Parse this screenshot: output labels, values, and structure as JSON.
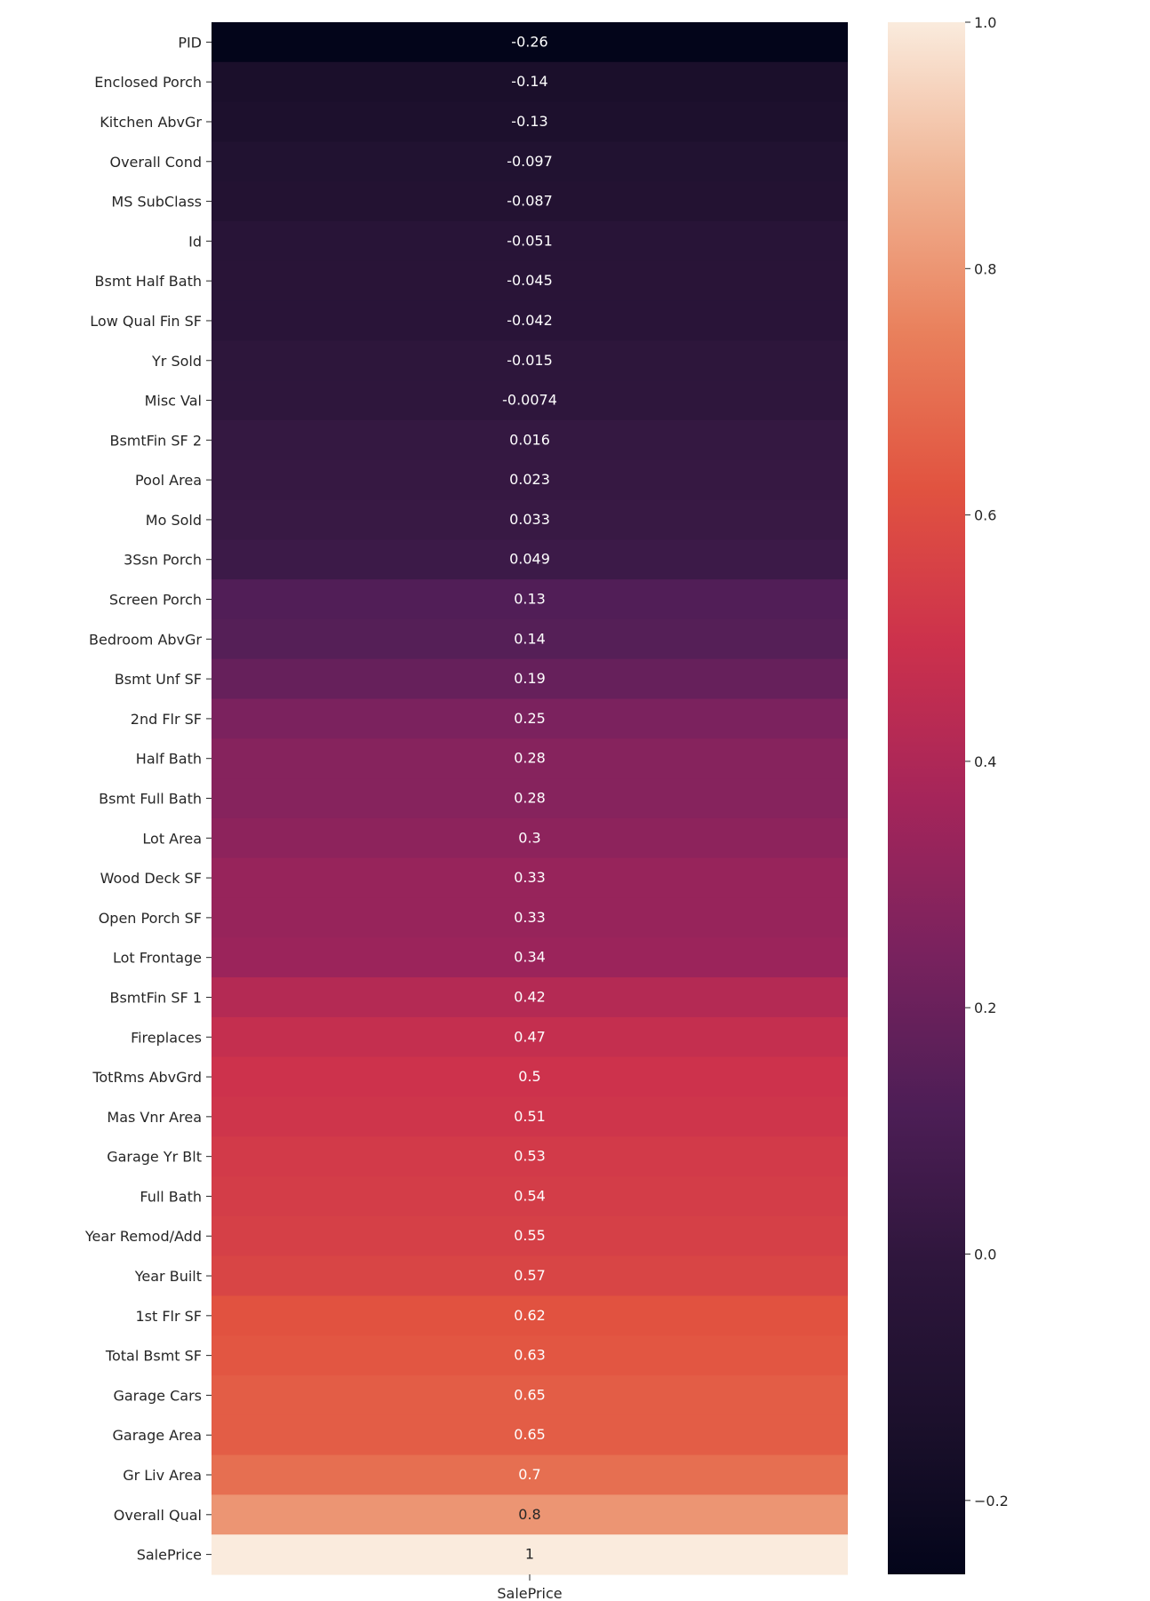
{
  "chart_data": {
    "type": "heatmap",
    "column": "SalePrice",
    "rows": [
      {
        "label": "PID",
        "value": -0.26,
        "text": "-0.26"
      },
      {
        "label": "Enclosed Porch",
        "value": -0.14,
        "text": "-0.14"
      },
      {
        "label": "Kitchen AbvGr",
        "value": -0.13,
        "text": "-0.13"
      },
      {
        "label": "Overall Cond",
        "value": -0.097,
        "text": "-0.097"
      },
      {
        "label": "MS SubClass",
        "value": -0.087,
        "text": "-0.087"
      },
      {
        "label": "Id",
        "value": -0.051,
        "text": "-0.051"
      },
      {
        "label": "Bsmt Half Bath",
        "value": -0.045,
        "text": "-0.045"
      },
      {
        "label": "Low Qual Fin SF",
        "value": -0.042,
        "text": "-0.042"
      },
      {
        "label": "Yr Sold",
        "value": -0.015,
        "text": "-0.015"
      },
      {
        "label": "Misc Val",
        "value": -0.0074,
        "text": "-0.0074"
      },
      {
        "label": "BsmtFin SF 2",
        "value": 0.016,
        "text": "0.016"
      },
      {
        "label": "Pool Area",
        "value": 0.023,
        "text": "0.023"
      },
      {
        "label": "Mo Sold",
        "value": 0.033,
        "text": "0.033"
      },
      {
        "label": "3Ssn Porch",
        "value": 0.049,
        "text": "0.049"
      },
      {
        "label": "Screen Porch",
        "value": 0.13,
        "text": "0.13"
      },
      {
        "label": "Bedroom AbvGr",
        "value": 0.14,
        "text": "0.14"
      },
      {
        "label": "Bsmt Unf SF",
        "value": 0.19,
        "text": "0.19"
      },
      {
        "label": "2nd Flr SF",
        "value": 0.25,
        "text": "0.25"
      },
      {
        "label": "Half Bath",
        "value": 0.28,
        "text": "0.28"
      },
      {
        "label": "Bsmt Full Bath",
        "value": 0.28,
        "text": "0.28"
      },
      {
        "label": "Lot Area",
        "value": 0.3,
        "text": "0.3"
      },
      {
        "label": "Wood Deck SF",
        "value": 0.33,
        "text": "0.33"
      },
      {
        "label": "Open Porch SF",
        "value": 0.33,
        "text": "0.33"
      },
      {
        "label": "Lot Frontage",
        "value": 0.34,
        "text": "0.34"
      },
      {
        "label": "BsmtFin SF 1",
        "value": 0.42,
        "text": "0.42"
      },
      {
        "label": "Fireplaces",
        "value": 0.47,
        "text": "0.47"
      },
      {
        "label": "TotRms AbvGrd",
        "value": 0.5,
        "text": "0.5"
      },
      {
        "label": "Mas Vnr Area",
        "value": 0.51,
        "text": "0.51"
      },
      {
        "label": "Garage Yr Blt",
        "value": 0.53,
        "text": "0.53"
      },
      {
        "label": "Full Bath",
        "value": 0.54,
        "text": "0.54"
      },
      {
        "label": "Year Remod/Add",
        "value": 0.55,
        "text": "0.55"
      },
      {
        "label": "Year Built",
        "value": 0.57,
        "text": "0.57"
      },
      {
        "label": "1st Flr SF",
        "value": 0.62,
        "text": "0.62"
      },
      {
        "label": "Total Bsmt SF",
        "value": 0.63,
        "text": "0.63"
      },
      {
        "label": "Garage Cars",
        "value": 0.65,
        "text": "0.65"
      },
      {
        "label": "Garage Area",
        "value": 0.65,
        "text": "0.65"
      },
      {
        "label": "Gr Liv Area",
        "value": 0.7,
        "text": "0.7"
      },
      {
        "label": "Overall Qual",
        "value": 0.8,
        "text": "0.8"
      },
      {
        "label": "SalePrice",
        "value": 1,
        "text": "1"
      }
    ],
    "colorbar": {
      "vmin": -0.26,
      "vmax": 1.0,
      "ticks": [
        1.0,
        0.8,
        0.6,
        0.4,
        0.2,
        0.0,
        -0.2
      ],
      "tick_labels": [
        "1.0",
        "0.8",
        "0.6",
        "0.4",
        "0.2",
        "0.0",
        "−0.2"
      ],
      "colormap": "rocket"
    }
  }
}
